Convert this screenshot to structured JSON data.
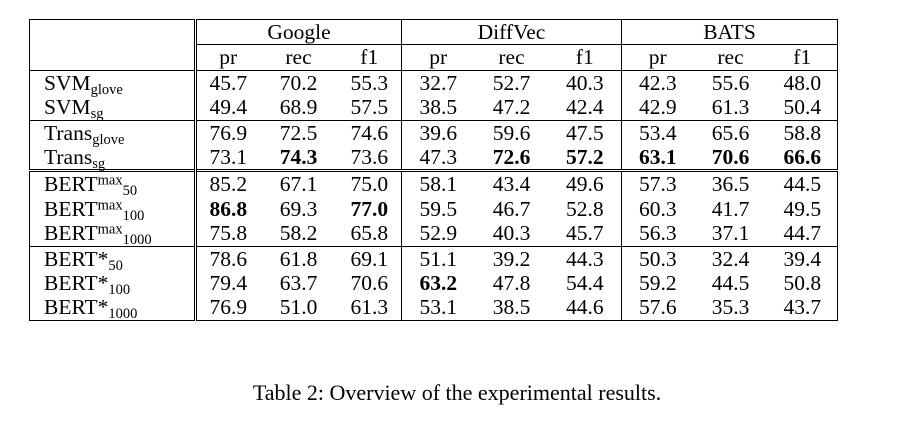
{
  "table": {
    "groups": [
      "Google",
      "DiffVec",
      "BATS"
    ],
    "metrics": [
      "pr",
      "rec",
      "f1"
    ],
    "rows": [
      {
        "base": "SVM",
        "sub": "glove",
        "sup": "",
        "values": [
          "45.7",
          "70.2",
          "55.3",
          "32.7",
          "52.7",
          "40.3",
          "42.3",
          "55.6",
          "48.0"
        ],
        "bold": []
      },
      {
        "base": "SVM",
        "sub": "sg",
        "sup": "",
        "values": [
          "49.4",
          "68.9",
          "57.5",
          "38.5",
          "47.2",
          "42.4",
          "42.9",
          "61.3",
          "50.4"
        ],
        "bold": []
      },
      {
        "base": "Trans",
        "sub": "glove",
        "sup": "",
        "values": [
          "76.9",
          "72.5",
          "74.6",
          "39.6",
          "59.6",
          "47.5",
          "53.4",
          "65.6",
          "58.8"
        ],
        "bold": []
      },
      {
        "base": "Trans",
        "sub": "sg",
        "sup": "",
        "values": [
          "73.1",
          "74.3",
          "73.6",
          "47.3",
          "72.6",
          "57.2",
          "63.1",
          "70.6",
          "66.6"
        ],
        "bold": [
          1,
          4,
          5,
          6,
          7,
          8
        ]
      },
      {
        "base": "BERT",
        "sub": "50",
        "sup": "max",
        "values": [
          "85.2",
          "67.1",
          "75.0",
          "58.1",
          "43.4",
          "49.6",
          "57.3",
          "36.5",
          "44.5"
        ],
        "bold": []
      },
      {
        "base": "BERT",
        "sub": "100",
        "sup": "max",
        "values": [
          "86.8",
          "69.3",
          "77.0",
          "59.5",
          "46.7",
          "52.8",
          "60.3",
          "41.7",
          "49.5"
        ],
        "bold": [
          0,
          2
        ]
      },
      {
        "base": "BERT",
        "sub": "1000",
        "sup": "max",
        "values": [
          "75.8",
          "58.2",
          "65.8",
          "52.9",
          "40.3",
          "45.7",
          "56.3",
          "37.1",
          "44.7"
        ],
        "bold": []
      },
      {
        "base": "BERT*",
        "sub": "50",
        "sup": "",
        "values": [
          "78.6",
          "61.8",
          "69.1",
          "51.1",
          "39.2",
          "44.3",
          "50.3",
          "32.4",
          "39.4"
        ],
        "bold": []
      },
      {
        "base": "BERT*",
        "sub": "100",
        "sup": "",
        "values": [
          "79.4",
          "63.7",
          "70.6",
          "63.2",
          "47.8",
          "54.4",
          "59.2",
          "44.5",
          "50.8"
        ],
        "bold": [
          3
        ]
      },
      {
        "base": "BERT*",
        "sub": "1000",
        "sup": "",
        "values": [
          "76.9",
          "51.0",
          "61.3",
          "53.1",
          "38.5",
          "44.6",
          "57.6",
          "35.3",
          "43.7"
        ],
        "bold": []
      }
    ]
  },
  "caption": "Table 2: Overview of the experimental results."
}
